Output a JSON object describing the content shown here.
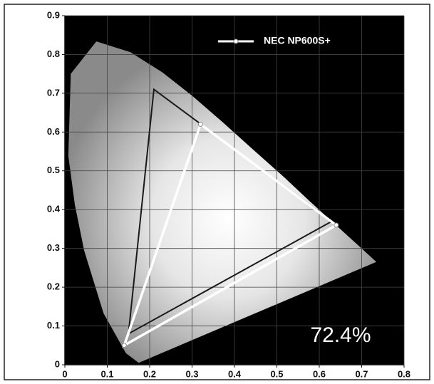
{
  "chart_data": {
    "type": "line",
    "series": [
      {
        "name": "NEC NP600S+",
        "color": "#ffffff",
        "x": [
          0.32,
          0.64,
          0.14
        ],
        "values": [
          0.62,
          0.36,
          0.05
        ]
      },
      {
        "color": "#1a1a1a",
        "x": [
          0.21,
          0.63,
          0.15
        ],
        "values": [
          0.71,
          0.37,
          0.08
        ]
      }
    ],
    "annotation": "72.4%",
    "xlim": [
      0,
      0.8
    ],
    "xticks": [
      0,
      0.1,
      0.2,
      0.3,
      0.4,
      0.5,
      0.6,
      0.7,
      0.8
    ],
    "ylim": [
      0,
      0.9
    ],
    "yticks": [
      0,
      0.1,
      0.2,
      0.3,
      0.4,
      0.5,
      0.6,
      0.7,
      0.8,
      0.9
    ],
    "grid": true
  }
}
